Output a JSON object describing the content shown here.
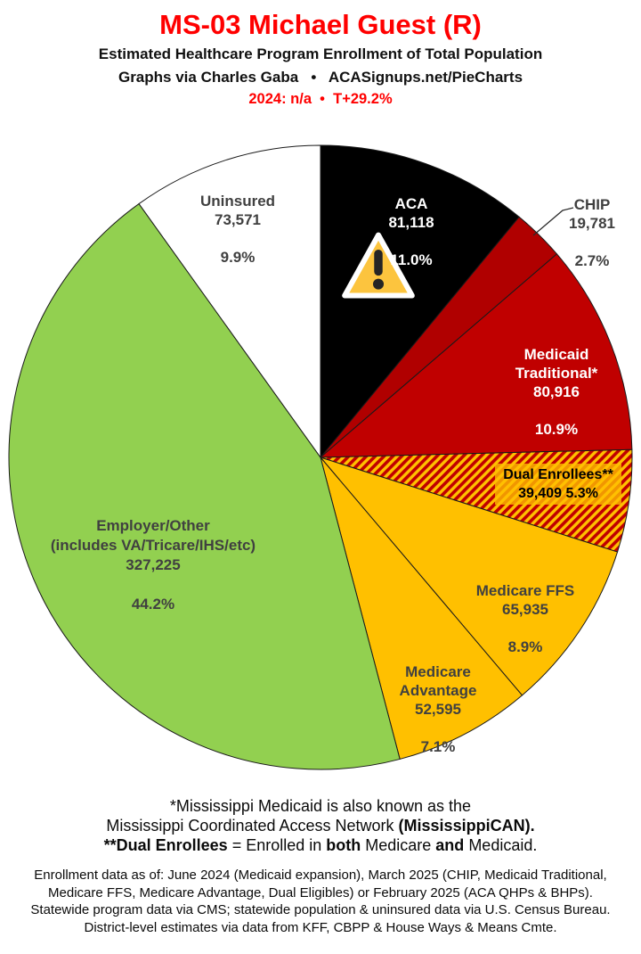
{
  "header": {
    "title": "MS-03 Michael Guest (R)",
    "subtitle": "Estimated Healthcare Program Enrollment of Total Population",
    "byline": "Graphs via Charles Gaba   •   ACASignups.net/PieCharts",
    "status": "2024: n/a  •  T+29.2%"
  },
  "colors": {
    "title_red": "#FF0000",
    "label_gray": "#404040",
    "slice_stroke": "#1A1A1A",
    "dual_hatch_red": "#C00000",
    "dual_hatch_yellow": "#FFC000",
    "dual_label_box": "rgba(255,192,0,0.78)",
    "warning_yellow": "#FCC43E"
  },
  "chart_data": {
    "type": "pie",
    "title": "MS-03 Michael Guest (R) — Estimated Healthcare Program Enrollment of Total Population",
    "start_angle_deg": -90,
    "direction": "clockwise",
    "center": [
      360,
      513
    ],
    "radius": 350,
    "stroke": "#1A1A1A",
    "slices": [
      {
        "id": "aca",
        "label": "ACA",
        "value": 81118,
        "value_display": "81,118",
        "pct": 11.0,
        "pct_display": "11.0%",
        "color": "#000000"
      },
      {
        "id": "chip",
        "label": "CHIP",
        "value": 19781,
        "value_display": "19,781",
        "pct": 2.7,
        "pct_display": "2.7%",
        "color": "#B00000"
      },
      {
        "id": "medicaid-traditional",
        "label": "Medicaid\nTraditional*",
        "value": 80916,
        "value_display": "80,916",
        "pct": 10.9,
        "pct_display": "10.9%",
        "color": "#C00000"
      },
      {
        "id": "dual-enrollees",
        "label": "Dual Enrollees**",
        "value": 39409,
        "value_display": "39,409",
        "pct": 5.3,
        "pct_display": "5.3%",
        "color": "red-yellow-hatch"
      },
      {
        "id": "medicare-ffs",
        "label": "Medicare FFS",
        "value": 65935,
        "value_display": "65,935",
        "pct": 8.9,
        "pct_display": "8.9%",
        "color": "#FFC000"
      },
      {
        "id": "medicare-advantage",
        "label": "Medicare\nAdvantage",
        "value": 52595,
        "value_display": "52,595",
        "pct": 7.1,
        "pct_display": "7.1%",
        "color": "#FFC000"
      },
      {
        "id": "employer-other",
        "label": "Employer/Other\n(includes VA/Tricare/IHS/etc)",
        "value": 327225,
        "value_display": "327,225",
        "pct": 44.2,
        "pct_display": "44.2%",
        "color": "#92D050"
      },
      {
        "id": "uninsured",
        "label": "Uninsured",
        "value": 73571,
        "value_display": "73,571",
        "pct": 9.9,
        "pct_display": "9.9%",
        "color": "#FFFFFF"
      }
    ]
  },
  "footnotes": {
    "line1": "*Mississippi Medicaid is also known as the",
    "line2_regular": "Mississippi Coordinated Access Network ",
    "line2_bold": "(MississippiCAN).",
    "line3_bold1": "**Dual Enrollees",
    "line3_reg1": " = Enrolled in ",
    "line3_bold2": "both",
    "line3_reg2": " Medicare ",
    "line3_bold3": "and",
    "line3_reg3": " Medicaid."
  },
  "source_lines": [
    "Enrollment data as of: June 2024 (Medicaid expansion), March 2025 (CHIP, Medicaid Traditional,",
    "Medicare FFS, Medicare Advantage, Dual Eligibles) or February 2025 (ACA QHPs & BHPs).",
    "Statewide program data via CMS; statewide population & uninsured data via U.S. Census Bureau.",
    "District-level estimates via data from KFF, CBPP & House Ways & Means Cmte."
  ]
}
